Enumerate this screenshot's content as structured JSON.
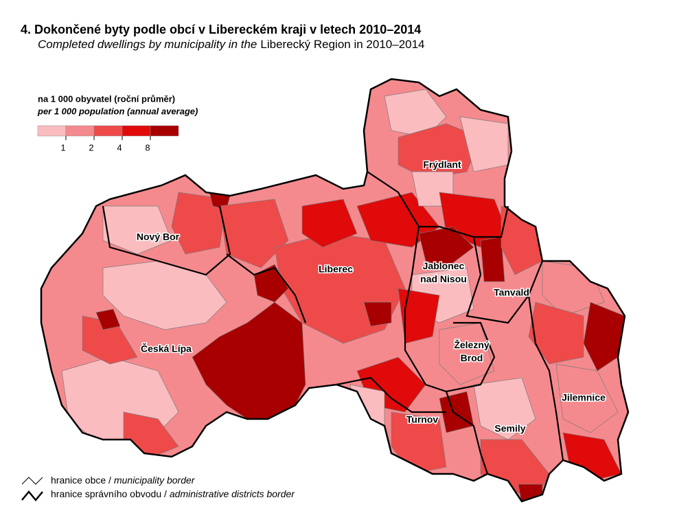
{
  "title": "4. Dokončené byty podle obcí v Libereckém kraji v letech 2010–2014",
  "subtitle": {
    "italic": "Completed dwellings by municipality in the",
    "regular": "Liberecký Region in 2010–2014"
  },
  "legend": {
    "title": "na 1 000 obyvatel (roční průměr)",
    "subtitle": "per 1 000 population (annual average)",
    "colors": [
      "#fbbcc0",
      "#f58a8e",
      "#ee4a4a",
      "#e00a0a",
      "#a80000"
    ],
    "ticks": [
      1,
      2,
      4,
      8
    ]
  },
  "districts": [
    {
      "name": [
        "Nový Bor"
      ]
    },
    {
      "name": [
        "Liberec"
      ]
    },
    {
      "name": [
        "Frýdlant"
      ]
    },
    {
      "name": [
        "Jablonec",
        "nad Nisou"
      ]
    },
    {
      "name": [
        "Tanvald"
      ]
    },
    {
      "name": [
        "Česká Lípa"
      ]
    },
    {
      "name": [
        "Železný",
        "Brod"
      ]
    },
    {
      "name": [
        "Jilemnice"
      ]
    },
    {
      "name": [
        "Turnov"
      ]
    },
    {
      "name": [
        "Semily"
      ]
    }
  ],
  "borders": [
    {
      "cz": "hranice obce /",
      "en": "municipality border"
    },
    {
      "cz": "hranice správního obvodu /",
      "en": "administrative districts border"
    }
  ]
}
